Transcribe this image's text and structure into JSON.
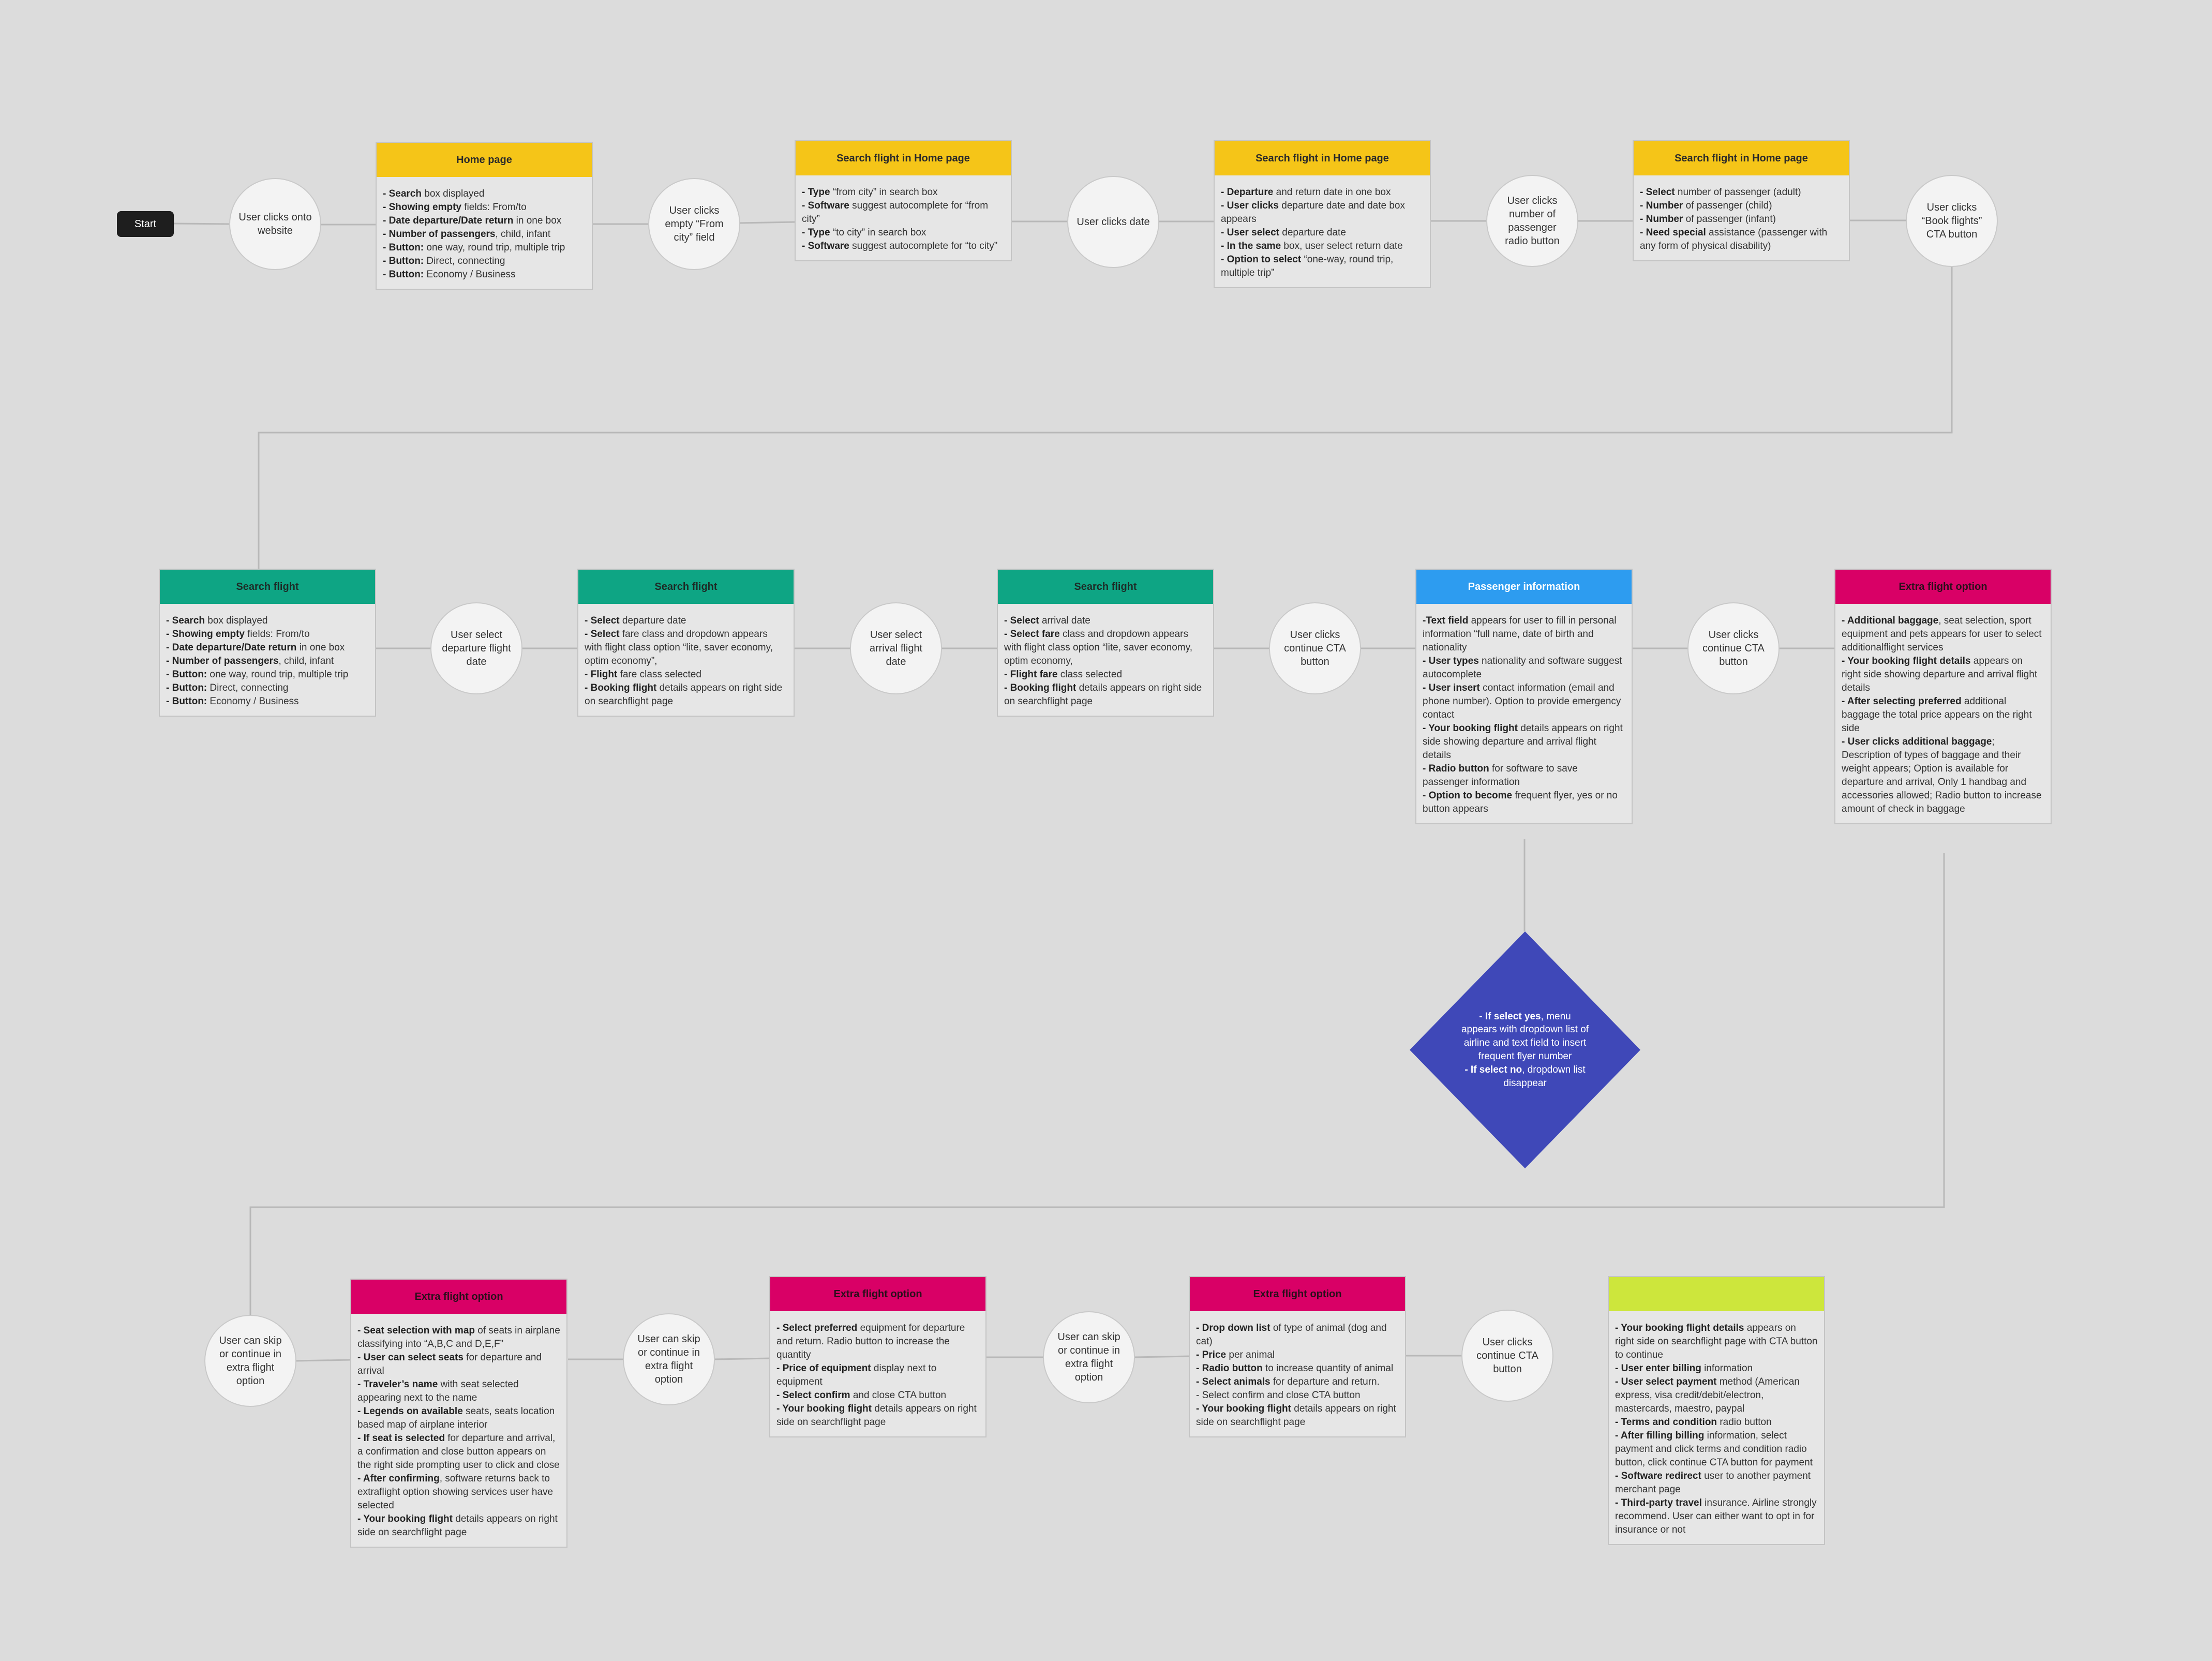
{
  "colors": {
    "background": "#dcdcdc",
    "yellow": "#f5c518",
    "green": "#0ea584",
    "blue": "#2d9cf0",
    "pink": "#d90066",
    "lime": "#cde63c",
    "diamond": "#3f48b8",
    "connector": "#b8b8b8"
  },
  "start": {
    "label": "Start"
  },
  "circles": [
    {
      "text": "User clicks onto website"
    },
    {
      "text": "User clicks empty “From city” field"
    },
    {
      "text": "User clicks date"
    },
    {
      "text": "User clicks number of passenger radio button"
    },
    {
      "text": "User clicks “Book flights” CTA button"
    },
    {
      "text": "User select departure flight date"
    },
    {
      "text": "User select arrival flight date"
    },
    {
      "text": "User clicks continue CTA button"
    },
    {
      "text": "User clicks continue CTA button"
    },
    {
      "text": "User can skip or continue in extra flight option"
    },
    {
      "text": "User can skip or continue in extra flight option"
    },
    {
      "text": "User can skip or continue in extra flight option"
    },
    {
      "text": "User clicks continue CTA button"
    }
  ],
  "cards": [
    {
      "title": "Home page",
      "lines": [
        {
          "b": "- Search",
          "t": " box displayed"
        },
        {
          "b": "- Showing empty",
          "t": " fields: From/to"
        },
        {
          "b": "- Date departure/Date return",
          "t": " in one box"
        },
        {
          "b": "- Number of passengers",
          "t": ", child, infant"
        },
        {
          "b": "- Button:",
          "t": " one way, round trip, multiple trip"
        },
        {
          "b": "- Button:",
          "t": " Direct, connecting"
        },
        {
          "b": "- Button:",
          "t": " Economy / Business"
        }
      ]
    },
    {
      "title": "Search flight in Home page",
      "lines": [
        {
          "b": "- Type",
          "t": " “from city” in search box"
        },
        {
          "b": "- Software",
          "t": " suggest autocomplete for “from city”"
        },
        {
          "b": "- Type",
          "t": " “to city” in search box"
        },
        {
          "b": "- Software",
          "t": " suggest autocomplete for “to city”"
        }
      ]
    },
    {
      "title": "Search flight in Home page",
      "lines": [
        {
          "b": "- Departure",
          "t": " and return date in one box"
        },
        {
          "b": "- User clicks",
          "t": " departure date and date box appears"
        },
        {
          "b": "- User select",
          "t": " departure date"
        },
        {
          "b": "- In the same",
          "t": " box, user select return date"
        },
        {
          "b": "- Option to select",
          "t": " “one-way, round trip, multiple trip”"
        }
      ]
    },
    {
      "title": "Search flight in Home page",
      "lines": [
        {
          "b": "- Select",
          "t": " number of passenger (adult)"
        },
        {
          "b": "- Number",
          "t": " of passenger (child)"
        },
        {
          "b": "- Number",
          "t": " of passenger (infant)"
        },
        {
          "b": "- Need special",
          "t": " assistance (passenger with any form of physical disability)"
        }
      ]
    },
    {
      "title": "Search flight",
      "lines": [
        {
          "b": "- Search",
          "t": " box displayed"
        },
        {
          "b": "- Showing empty",
          "t": " fields: From/to"
        },
        {
          "b": "- Date departure/Date return",
          "t": " in one box"
        },
        {
          "b": "- Number of passengers",
          "t": ", child, infant"
        },
        {
          "b": "- Button:",
          "t": " one way, round trip, multiple trip"
        },
        {
          "b": "- Button:",
          "t": " Direct, connecting"
        },
        {
          "b": "- Button:",
          "t": " Economy / Business"
        }
      ]
    },
    {
      "title": "Search flight",
      "lines": [
        {
          "b": "- Select",
          "t": " departure date"
        },
        {
          "b": "- Select",
          "t": " fare class and dropdown appears with flight class option “lite, saver economy, optim economy”,"
        },
        {
          "b": "- Flight",
          "t": " fare class selected"
        },
        {
          "b": "- Booking flight",
          "t": " details appears on right side on searchflight page"
        }
      ]
    },
    {
      "title": "Search flight",
      "lines": [
        {
          "b": "- Select",
          "t": " arrival date"
        },
        {
          "b": "- Select fare",
          "t": " class and dropdown appears with flight class option “lite, saver economy, optim economy,"
        },
        {
          "b": "- Flight fare",
          "t": " class selected"
        },
        {
          "b": "- Booking flight",
          "t": " details appears on right side on searchflight page"
        }
      ]
    },
    {
      "title": "Passenger information",
      "lines": [
        {
          "b": "-Text field",
          "t": " appears for user to fill in personal information “full name, date of birth and nationality"
        },
        {
          "b": "- User types",
          "t": " nationality and software suggest autocomplete"
        },
        {
          "b": "- User insert",
          "t": " contact information (email and phone number). Option to provide emergency contact"
        },
        {
          "b": "- Your booking flight",
          "t": " details appears on right side showing departure and arrival flight details"
        },
        {
          "b": "- Radio button",
          "t": " for software to save passenger information"
        },
        {
          "b": "- Option to become",
          "t": " frequent flyer, yes or no button appears"
        }
      ]
    },
    {
      "title": "Extra flight option",
      "lines": [
        {
          "b": "- Additional baggage",
          "t": ", seat selection, sport equipment and pets appears for user to select additionalflight services"
        },
        {
          "b": "- Your booking flight details",
          "t": " appears on right side showing departure and arrival flight details"
        },
        {
          "b": "- After selecting preferred",
          "t": " additional baggage the total price appears on the right side"
        },
        {
          "b": "- User clicks additional baggage",
          "t": "; Description of types of baggage and their weight appears; Option is available for departure and arrival, Only 1 handbag and accessories allowed; Radio button to increase amount of check in baggage"
        }
      ]
    },
    {
      "title": "Extra flight option",
      "lines": [
        {
          "b": "- Seat selection with map",
          "t": " of seats in airplane classifying into “A,B,C and D,E,F”"
        },
        {
          "b": "- User can select seats",
          "t": " for departure and arrival"
        },
        {
          "b": "- Traveler’s name",
          "t": " with seat selected appearing next to the name"
        },
        {
          "b": "- Legends on available",
          "t": " seats, seats location based map of airplane interior"
        },
        {
          "b": "- If seat is selected",
          "t": " for departure and arrival, a confirmation and close button appears on the right side prompting user to click and close"
        },
        {
          "b": "- After confirming",
          "t": ", software returns back to extraflight option showing services user have selected"
        },
        {
          "b": "- Your booking flight",
          "t": " details appears on right side on searchflight page"
        }
      ]
    },
    {
      "title": "Extra flight option",
      "lines": [
        {
          "b": "- Select preferred",
          "t": " equipment for departure and return. Radio button to increase the quantity"
        },
        {
          "b": "- Price of equipment",
          "t": " display next to equipment"
        },
        {
          "b": "- Select confirm",
          "t": " and close CTA button"
        },
        {
          "b": "- Your booking flight",
          "t": " details appears on right side on searchflight page"
        }
      ]
    },
    {
      "title": "Extra flight option",
      "lines": [
        {
          "b": "- Drop down list",
          "t": " of type of animal (dog and cat)"
        },
        {
          "b": "- Price",
          "t": " per animal"
        },
        {
          "b": "- Radio button",
          "t": " to increase quantity of animal"
        },
        {
          "b": "- Select animals",
          "t": " for departure and return."
        },
        {
          "b": "",
          "t": "- Select confirm and close CTA button"
        },
        {
          "b": "- Your booking flight",
          "t": " details appears on right side on searchflight page"
        }
      ]
    },
    {
      "title": "",
      "lines": [
        {
          "b": "- Your booking flight details",
          "t": " appears on right side on searchflight page with CTA button to continue"
        },
        {
          "b": "- User enter billing",
          "t": " information"
        },
        {
          "b": "- User select payment",
          "t": " method (American express, visa credit/debit/electron, mastercards, maestro, paypal"
        },
        {
          "b": "- Terms and condition",
          "t": " radio button"
        },
        {
          "b": "- After filling billing",
          "t": " information, select payment and click terms and condition radio button, click continue CTA button for payment"
        },
        {
          "b": "- Software redirect",
          "t": " user to another payment merchant page"
        },
        {
          "b": "- Third-party travel",
          "t": " insurance. Airline strongly recommend. User can either want to opt in for insurance or not"
        }
      ]
    }
  ],
  "diamond": {
    "line1_b": "- If select yes",
    "line1_t": ", menu appears with dropdown list of airline and text field to insert frequent flyer number",
    "line2_b": "- If select no",
    "line2_t": ", dropdown list disappear"
  }
}
